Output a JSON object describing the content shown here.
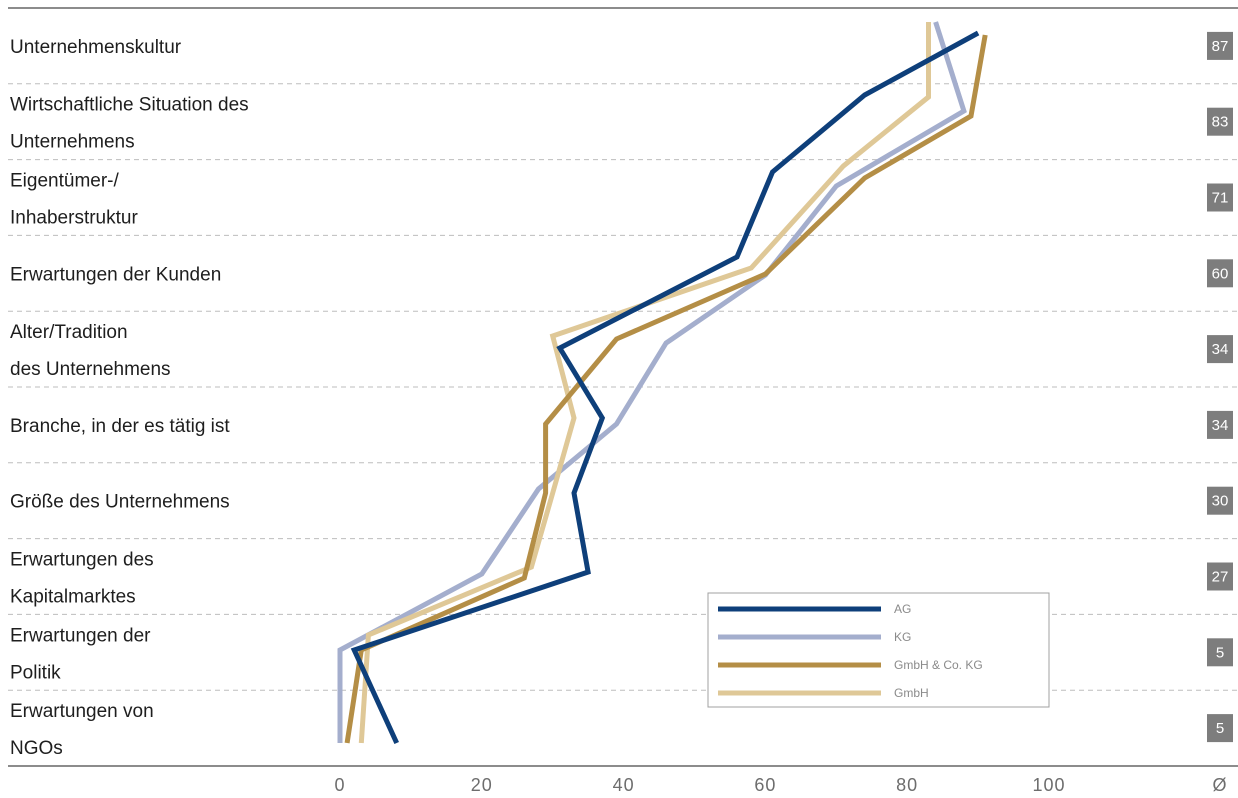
{
  "chart_data": {
    "type": "line",
    "orientation": "horizontal-values",
    "categories": [
      [
        "Unternehmenskultur"
      ],
      [
        "Wirtschaftliche Situation des",
        "Unternehmens"
      ],
      [
        "Eigentümer-/",
        "Inhaberstruktur"
      ],
      [
        "Erwartungen der Kunden"
      ],
      [
        "Alter/Tradition",
        "des Unternehmens"
      ],
      [
        "Branche, in der es tätig ist"
      ],
      [
        "Größe des Unternehmens"
      ],
      [
        "Erwartungen des",
        "Kapitalmarktes"
      ],
      [
        "Erwartungen der",
        "Politik"
      ],
      [
        "Erwartungen von",
        "NGOs"
      ]
    ],
    "averages": [
      "87",
      "83",
      "71",
      "60",
      "34",
      "34",
      "30",
      "27",
      "5",
      "5"
    ],
    "average_axis_label": "Ø",
    "xlim": [
      0,
      100
    ],
    "xticks": [
      "0",
      "20",
      "40",
      "60",
      "80",
      "100"
    ],
    "grid": "dashed horizontal separators",
    "legend_position": "bottom-right",
    "series": [
      {
        "name": "AG",
        "color": "#0e3f7a",
        "values": [
          [
            90,
            33
          ],
          [
            74,
            95
          ],
          [
            61,
            172
          ],
          [
            56,
            257
          ],
          [
            31,
            348
          ],
          [
            37,
            418
          ],
          [
            33,
            493
          ],
          [
            35,
            572
          ],
          [
            2,
            650
          ],
          [
            8,
            743
          ]
        ]
      },
      {
        "name": "KG",
        "color": "#a4aecd",
        "values": [
          [
            84,
            22
          ],
          [
            88,
            111
          ],
          [
            70,
            186
          ],
          [
            60,
            275
          ],
          [
            46,
            343
          ],
          [
            39,
            424
          ],
          [
            28,
            489
          ],
          [
            20,
            574
          ],
          [
            0,
            650
          ],
          [
            0,
            743
          ]
        ]
      },
      {
        "name": "GmbH & Co. KG",
        "color": "#b48e46",
        "values": [
          [
            91,
            35
          ],
          [
            89,
            116
          ],
          [
            74,
            178
          ],
          [
            60,
            274
          ],
          [
            39,
            339
          ],
          [
            29,
            424
          ],
          [
            29,
            493
          ],
          [
            26,
            578
          ],
          [
            3,
            650
          ],
          [
            1,
            743
          ]
        ]
      },
      {
        "name": "GmbH",
        "color": "#dfc897",
        "values": [
          [
            83,
            22
          ],
          [
            83,
            97
          ],
          [
            71,
            166
          ],
          [
            58,
            268
          ],
          [
            30,
            336
          ],
          [
            33,
            418
          ],
          [
            30,
            493
          ],
          [
            27,
            567
          ],
          [
            4,
            635
          ],
          [
            3,
            743
          ]
        ]
      }
    ]
  }
}
